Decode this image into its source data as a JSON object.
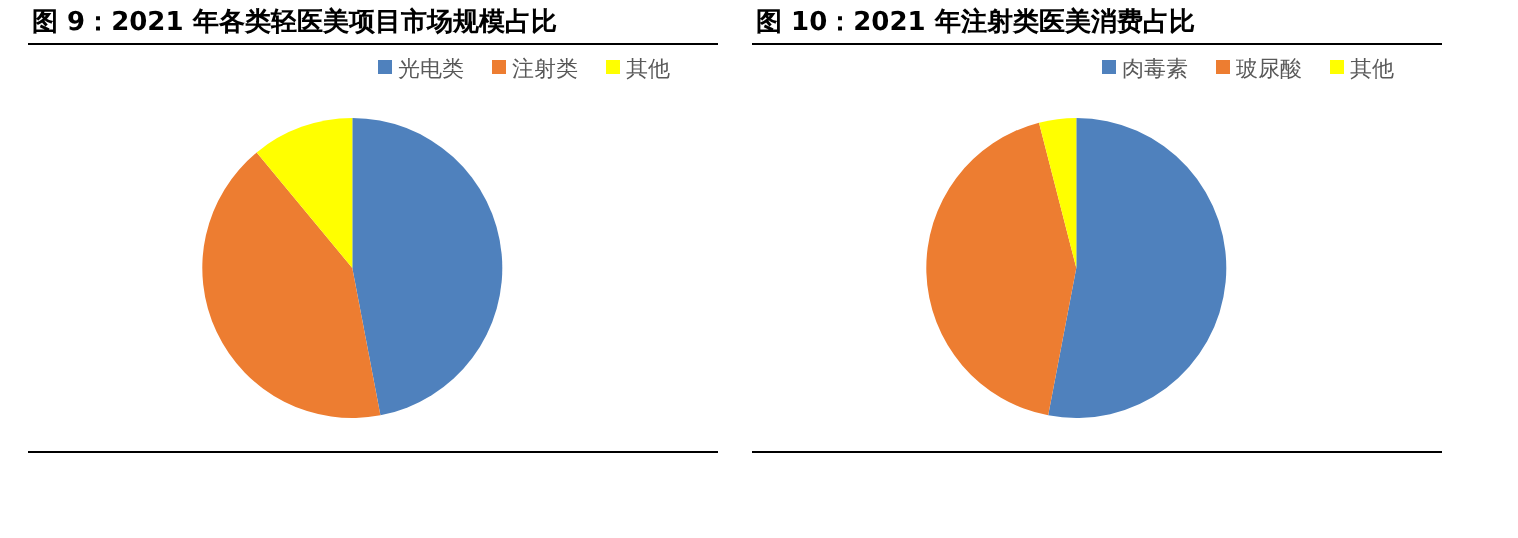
{
  "chart_data": [
    {
      "type": "pie",
      "title": "图 9：2021 年各类轻医美项目市场规模占比",
      "categories": [
        "光电类",
        "注射类",
        "其他"
      ],
      "values": [
        47,
        42,
        11
      ],
      "colors": [
        "#4f81bd",
        "#ed7d31",
        "#ffff00"
      ],
      "legend": "top right"
    },
    {
      "type": "pie",
      "title": "图 10：2021 年注射类医美消费占比",
      "categories": [
        "肉毒素",
        "玻尿酸",
        "其他"
      ],
      "values": [
        53,
        43,
        4
      ],
      "colors": [
        "#4f81bd",
        "#ed7d31",
        "#ffff00"
      ],
      "legend": "top right"
    }
  ]
}
